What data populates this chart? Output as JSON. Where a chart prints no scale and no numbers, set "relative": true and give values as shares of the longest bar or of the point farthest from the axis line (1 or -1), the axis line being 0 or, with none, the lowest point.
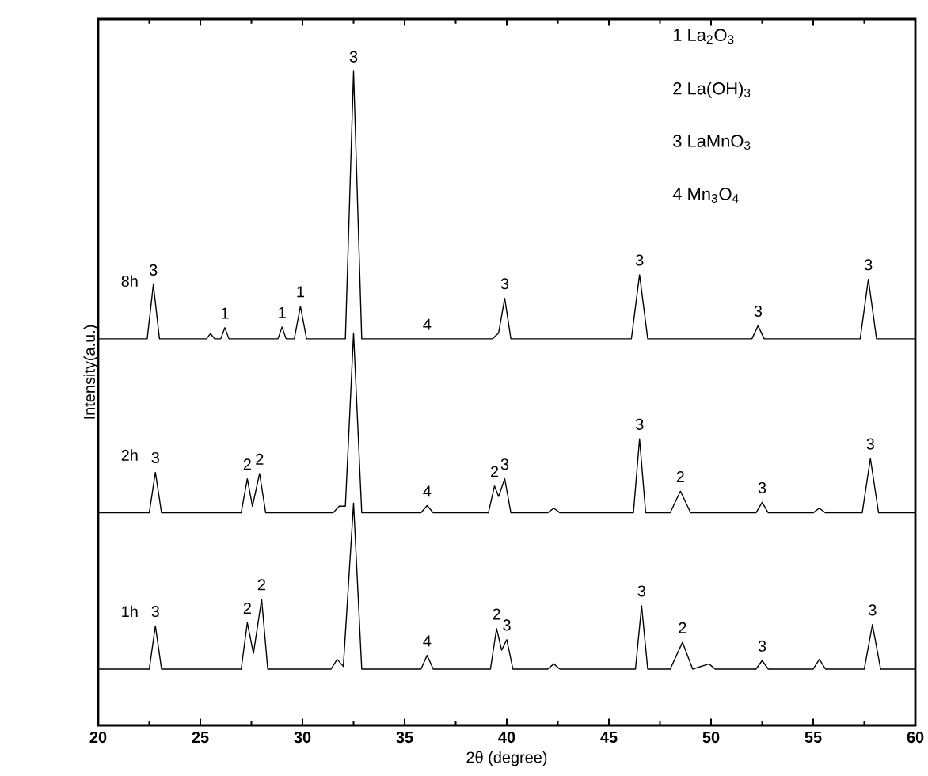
{
  "chart_data": {
    "type": "line",
    "relative": true,
    "xlabel": "2θ (degree)",
    "ylabel": "Intensity(a.u.)",
    "xlim": [
      20,
      60
    ],
    "xticks": [
      20,
      25,
      30,
      35,
      40,
      45,
      50,
      55,
      60
    ],
    "legend": false,
    "marker": "none",
    "line_style": "solid",
    "series": [
      {
        "name": "8h",
        "color": "#000000",
        "x": [
          20,
          22.4,
          22.7,
          23.0,
          25.3,
          25.5,
          25.7,
          26.0,
          26.2,
          26.4,
          28.8,
          29.0,
          29.2,
          29.6,
          29.9,
          30.2,
          32.1,
          32.5,
          32.9,
          39.3,
          39.6,
          39.9,
          40.2,
          46.1,
          46.5,
          46.9,
          52.0,
          52.3,
          52.6,
          57.3,
          57.7,
          58.1,
          60
        ],
        "values": [
          0.591,
          0.591,
          0.674,
          0.591,
          0.591,
          0.599,
          0.591,
          0.591,
          0.608,
          0.591,
          0.591,
          0.609,
          0.591,
          0.591,
          0.641,
          0.591,
          0.591,
          1.0,
          0.591,
          0.591,
          0.6,
          0.653,
          0.591,
          0.591,
          0.689,
          0.591,
          0.591,
          0.611,
          0.591,
          0.591,
          0.682,
          0.591,
          0.591
        ]
      },
      {
        "name": "2h",
        "color": "#000000",
        "x": [
          20,
          22.5,
          22.8,
          23.1,
          27.0,
          27.3,
          27.55,
          27.9,
          28.2,
          31.5,
          31.8,
          32.1,
          32.5,
          32.9,
          35.8,
          36.1,
          36.4,
          39.1,
          39.4,
          39.6,
          39.9,
          40.2,
          42.0,
          42.3,
          42.6,
          46.2,
          46.5,
          46.8,
          48.0,
          48.5,
          49.0,
          52.2,
          52.5,
          52.8,
          55.0,
          55.3,
          55.6,
          57.4,
          57.8,
          58.2,
          60
        ],
        "values": [
          0.325,
          0.325,
          0.387,
          0.325,
          0.325,
          0.377,
          0.335,
          0.385,
          0.325,
          0.325,
          0.335,
          0.335,
          0.6,
          0.325,
          0.325,
          0.336,
          0.325,
          0.325,
          0.366,
          0.35,
          0.377,
          0.325,
          0.325,
          0.332,
          0.325,
          0.325,
          0.438,
          0.325,
          0.325,
          0.358,
          0.325,
          0.325,
          0.341,
          0.325,
          0.325,
          0.332,
          0.325,
          0.325,
          0.408,
          0.325,
          0.325
        ]
      },
      {
        "name": "1h",
        "color": "#000000",
        "x": [
          20,
          22.5,
          22.8,
          23.1,
          27.0,
          27.3,
          27.6,
          28.0,
          28.3,
          31.4,
          31.7,
          32.0,
          32.5,
          32.9,
          35.8,
          36.1,
          36.4,
          39.2,
          39.5,
          39.75,
          40.0,
          40.3,
          42.0,
          42.3,
          42.6,
          46.3,
          46.6,
          46.9,
          48.0,
          48.6,
          49.1,
          49.9,
          50.2,
          52.2,
          52.5,
          52.8,
          55.0,
          55.3,
          55.6,
          57.5,
          57.9,
          58.3,
          60
        ],
        "values": [
          0.086,
          0.086,
          0.152,
          0.086,
          0.086,
          0.157,
          0.11,
          0.193,
          0.086,
          0.086,
          0.101,
          0.09,
          0.34,
          0.086,
          0.086,
          0.107,
          0.086,
          0.086,
          0.148,
          0.115,
          0.131,
          0.086,
          0.086,
          0.094,
          0.086,
          0.086,
          0.183,
          0.086,
          0.086,
          0.127,
          0.086,
          0.094,
          0.086,
          0.086,
          0.099,
          0.086,
          0.086,
          0.101,
          0.086,
          0.086,
          0.154,
          0.086,
          0.086
        ]
      }
    ],
    "annotations": [
      "1 La$_{2}$O$_{3}$",
      "2 La(OH)$_{3}$",
      "3 LaMnO$_{3}$",
      "4 Mn$_{3}$O$_{4}$",
      {
        "text": "3",
        "x": 22.7,
        "y": 0.674
      },
      {
        "text": "1",
        "x": 26.2,
        "y": 0.608
      },
      {
        "text": "1",
        "x": 29.0,
        "y": 0.609
      },
      {
        "text": "1",
        "x": 29.9,
        "y": 0.641
      },
      {
        "text": "3",
        "x": 32.5,
        "y": 1.0
      },
      {
        "text": "4",
        "x": 36.1,
        "y": 0.591
      },
      {
        "text": "3",
        "x": 39.9,
        "y": 0.653
      },
      {
        "text": "3",
        "x": 46.5,
        "y": 0.689
      },
      {
        "text": "3",
        "x": 52.3,
        "y": 0.611
      },
      {
        "text": "3",
        "x": 57.7,
        "y": 0.682
      },
      {
        "text": "3",
        "x": 22.8,
        "y": 0.387
      },
      {
        "text": "2",
        "x": 27.3,
        "y": 0.377
      },
      {
        "text": "2",
        "x": 27.9,
        "y": 0.385
      },
      {
        "text": "4",
        "x": 36.1,
        "y": 0.336
      },
      {
        "text": "2",
        "x": 39.4,
        "y": 0.366
      },
      {
        "text": "3",
        "x": 39.9,
        "y": 0.377
      },
      {
        "text": "3",
        "x": 46.5,
        "y": 0.438
      },
      {
        "text": "2",
        "x": 48.5,
        "y": 0.358
      },
      {
        "text": "3",
        "x": 52.5,
        "y": 0.341
      },
      {
        "text": "3",
        "x": 57.8,
        "y": 0.408
      },
      {
        "text": "3",
        "x": 22.8,
        "y": 0.152
      },
      {
        "text": "2",
        "x": 27.3,
        "y": 0.157
      },
      {
        "text": "2",
        "x": 28.0,
        "y": 0.193
      },
      {
        "text": "4",
        "x": 36.1,
        "y": 0.107
      },
      {
        "text": "2",
        "x": 39.5,
        "y": 0.148
      },
      {
        "text": "3",
        "x": 40.0,
        "y": 0.131
      },
      {
        "text": "3",
        "x": 46.6,
        "y": 0.183
      },
      {
        "text": "2",
        "x": 48.6,
        "y": 0.127
      },
      {
        "text": "3",
        "x": 52.5,
        "y": 0.099
      },
      {
        "text": "3",
        "x": 57.9,
        "y": 0.154
      }
    ]
  }
}
